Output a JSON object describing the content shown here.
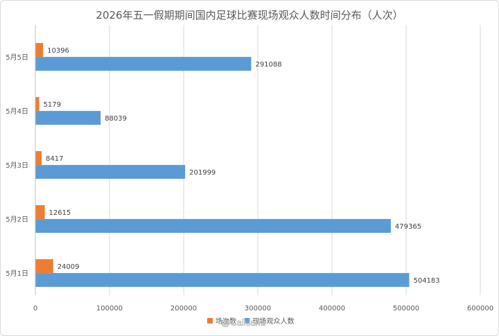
{
  "chart_data": {
    "type": "bar",
    "orientation": "horizontal",
    "title": "2026年五一假期期间国内足球比赛现场观众人数时间分布（人次）",
    "categories": [
      "5月5日",
      "5月4日",
      "5月3日",
      "5月2日",
      "5月1日"
    ],
    "series": [
      {
        "name": "场次数",
        "color": "#ED7D31",
        "values": [
          10396,
          5179,
          8417,
          12615,
          24009
        ]
      },
      {
        "name": "现场观众人数",
        "color": "#5B9BD5",
        "values": [
          291088,
          88039,
          201999,
          479365,
          504183
        ]
      }
    ],
    "xlim": [
      0,
      600000
    ],
    "xticks": [
      "0",
      "100000",
      "200000",
      "300000",
      "400000",
      "500000",
      "600000"
    ],
    "grid": true,
    "legend_position": "bottom"
  },
  "watermark": "@Caikiaria"
}
